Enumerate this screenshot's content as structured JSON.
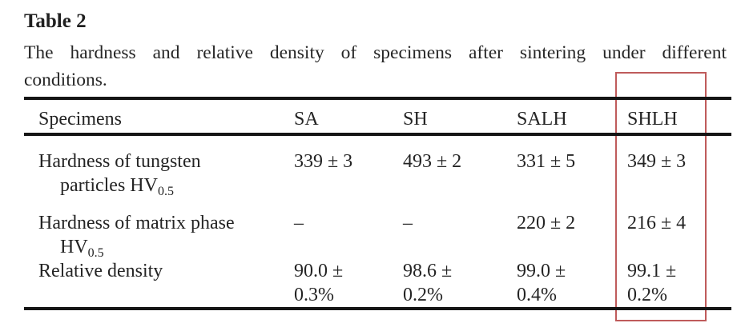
{
  "document": {
    "heading": "Table 2",
    "caption_line1": "The hardness and relative density of specimens after sintering under different",
    "caption_line2": "conditions."
  },
  "table": {
    "columns": [
      "Specimens",
      "SA",
      "SH",
      "SALH",
      "SHLH"
    ],
    "rows": [
      {
        "label": {
          "line1": "Hardness of tungsten",
          "line2": "particles HV",
          "sub": "0.5"
        },
        "cells": [
          {
            "line1": "339 ± 3"
          },
          {
            "line1": "493 ± 2"
          },
          {
            "line1": "331 ± 5"
          },
          {
            "line1": "349 ± 3"
          }
        ]
      },
      {
        "label": {
          "line1": "Hardness of matrix phase",
          "line2": "HV",
          "sub": "0.5"
        },
        "cells": [
          {
            "line1": "–"
          },
          {
            "line1": "–"
          },
          {
            "line1": "220 ± 2"
          },
          {
            "line1": "216 ± 4"
          }
        ]
      },
      {
        "label": {
          "line1": "Relative density"
        },
        "cells": [
          {
            "line1": "90.0 ±",
            "line2": "0.3%"
          },
          {
            "line1": "98.6 ±",
            "line2": "0.2%"
          },
          {
            "line1": "99.0 ±",
            "line2": "0.4%"
          },
          {
            "line1": "99.1 ±",
            "line2": "0.2%"
          }
        ]
      }
    ]
  },
  "annotation": {
    "type": "column-highlight",
    "highlighted_column": "SHLH",
    "highlight_color": "#bf5b5b"
  },
  "colors": {
    "text": "#262626",
    "rule": "#151515",
    "background": "#ffffff"
  }
}
